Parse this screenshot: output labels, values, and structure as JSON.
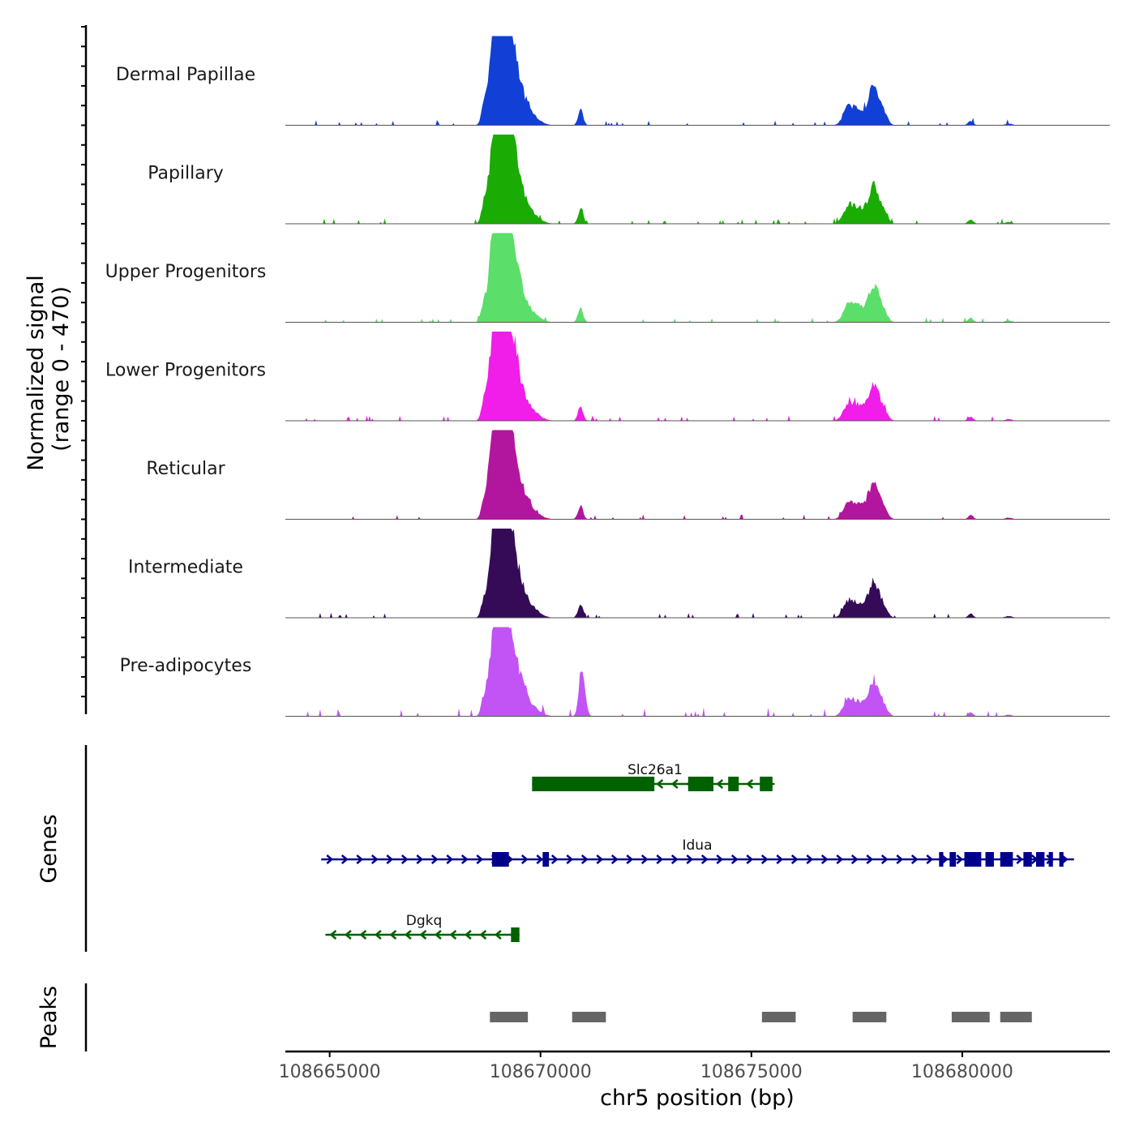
{
  "chart_data": {
    "type": "area",
    "title": "",
    "xlabel": "chr5 position (bp)",
    "ylabel_line1": "Normalized signal",
    "ylabel_line2": "(range 0 - 470)",
    "yrange": [
      0,
      470
    ],
    "xlim": [
      108663950,
      108683500
    ],
    "x_ticks": [
      108665000,
      108670000,
      108675000,
      108680000
    ],
    "x_tick_labels": [
      "108665000",
      "108670000",
      "108675000",
      "108680000"
    ],
    "tracks": [
      {
        "name": "Dermal Papillae",
        "color": "#1240d6"
      },
      {
        "name": "Papillary",
        "color": "#1aab05"
      },
      {
        "name": "Upper Progenitors",
        "color": "#5cde6a"
      },
      {
        "name": "Lower Progenitors",
        "color": "#f01ee8"
      },
      {
        "name": "Reticular",
        "color": "#b3169e"
      },
      {
        "name": "Intermediate",
        "color": "#350b58"
      },
      {
        "name": "Pre-adipocytes",
        "color": "#c254f5"
      }
    ],
    "peaks_profile": [
      {
        "pos": 108668900,
        "height": 0.96,
        "width": 120
      },
      {
        "pos": 108669050,
        "height": 0.82,
        "width": 110
      },
      {
        "pos": 108669250,
        "height": 0.88,
        "width": 130
      },
      {
        "pos": 108669450,
        "height": 0.42,
        "width": 160
      },
      {
        "pos": 108668650,
        "height": 0.16,
        "width": 60
      },
      {
        "pos": 108669750,
        "height": 0.12,
        "width": 200
      },
      {
        "pos": 108670950,
        "height": 0.17,
        "width": 60
      },
      {
        "pos": 108677300,
        "height": 0.2,
        "width": 120
      },
      {
        "pos": 108677550,
        "height": 0.16,
        "width": 120
      },
      {
        "pos": 108677900,
        "height": 0.44,
        "width": 130
      },
      {
        "pos": 108678150,
        "height": 0.1,
        "width": 90
      },
      {
        "pos": 108680200,
        "height": 0.05,
        "width": 60
      },
      {
        "pos": 108681100,
        "height": 0.02,
        "width": 80
      }
    ],
    "genes_label": "Genes",
    "genes": [
      {
        "name": "Slc26a1",
        "strand": "-",
        "start": 108669800,
        "end": 108675550,
        "row": 0,
        "color": "#006100",
        "exons": [
          [
            108669800,
            108672700
          ],
          [
            108673500,
            108674100
          ],
          [
            108674450,
            108674700
          ],
          [
            108675200,
            108675500
          ]
        ]
      },
      {
        "name": "Idua",
        "strand": "+",
        "start": 108664800,
        "end": 108682650,
        "row": 1,
        "color": "#00008b",
        "exons": [
          [
            108668850,
            108669250
          ],
          [
            108670050,
            108670200
          ],
          [
            108679450,
            108679550
          ],
          [
            108679700,
            108679850
          ],
          [
            108680050,
            108680450
          ],
          [
            108680550,
            108680750
          ],
          [
            108680900,
            108681200
          ],
          [
            108681450,
            108681650
          ],
          [
            108681750,
            108681950
          ],
          [
            108682050,
            108682150
          ],
          [
            108682300,
            108682400
          ]
        ]
      },
      {
        "name": "Dgkq",
        "strand": "-",
        "start": 108664900,
        "end": 108669500,
        "row": 2,
        "color": "#006100",
        "exons": [
          [
            108669300,
            108669500
          ]
        ]
      }
    ],
    "peaks_label": "Peaks",
    "peaks": [
      [
        108668800,
        108669700
      ],
      [
        108670750,
        108671550
      ],
      [
        108675250,
        108676050
      ],
      [
        108677400,
        108678200
      ],
      [
        108679750,
        108680650
      ],
      [
        108680900,
        108681650
      ]
    ]
  }
}
